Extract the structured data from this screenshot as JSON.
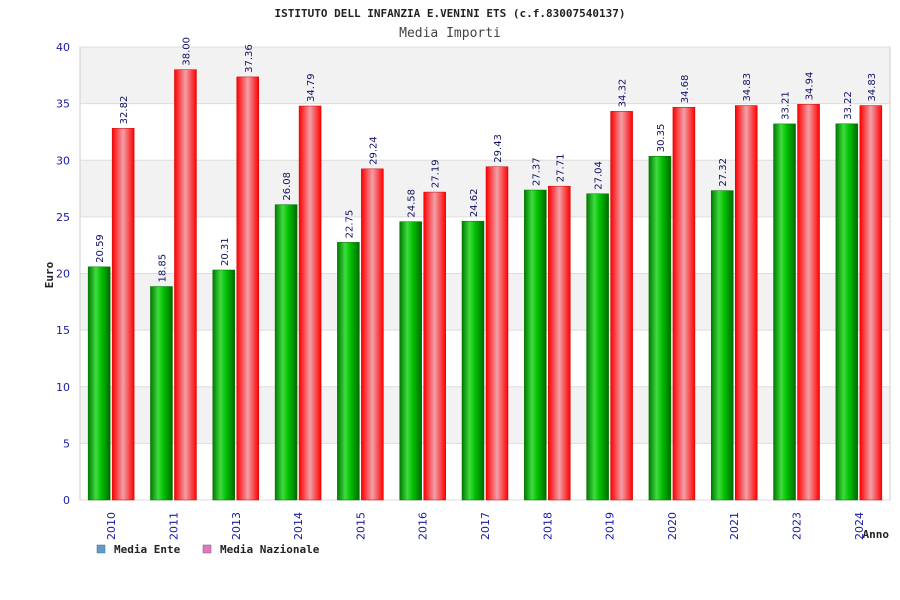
{
  "chart_data": {
    "type": "bar",
    "title": "ISTITUTO DELL INFANZIA E.VENINI ETS (c.f.83007540137)",
    "subtitle": "Media Importi",
    "xlabel": "Anno",
    "ylabel": "Euro",
    "ylim": [
      0,
      40
    ],
    "yticks": [
      0,
      5,
      10,
      15,
      20,
      25,
      30,
      35,
      40
    ],
    "categories": [
      "2010",
      "2011",
      "2013",
      "2014",
      "2015",
      "2016",
      "2017",
      "2018",
      "2019",
      "2020",
      "2021",
      "2023",
      "2024"
    ],
    "series": [
      {
        "name": "Media Ente",
        "color": "#00c000",
        "legend_color": "#5b9bd5",
        "values": [
          20.59,
          18.85,
          20.31,
          26.08,
          22.75,
          24.58,
          24.62,
          27.37,
          27.04,
          30.35,
          27.32,
          33.21,
          33.22
        ]
      },
      {
        "name": "Media Nazionale",
        "color": "#ff0000",
        "legend_color": "#e377c2",
        "values": [
          32.82,
          38.0,
          37.36,
          34.79,
          29.24,
          27.19,
          29.43,
          27.71,
          34.32,
          34.68,
          34.83,
          34.94,
          34.83
        ]
      }
    ],
    "value_labels": [
      [
        "20.59",
        "18.85",
        "20.31",
        "26.08",
        "22.75",
        "24.58",
        "24.62",
        "27.37",
        "27.04",
        "30.35",
        "27.32",
        "33.21",
        "33.22"
      ],
      [
        "32.82",
        "38.00",
        "37.36",
        "34.79",
        "29.24",
        "27.19",
        "29.43",
        "27.71",
        "34.32",
        "34.68",
        "34.83",
        "34.94",
        "34.83"
      ]
    ],
    "grid": true,
    "legend_position": "bottom-left"
  }
}
